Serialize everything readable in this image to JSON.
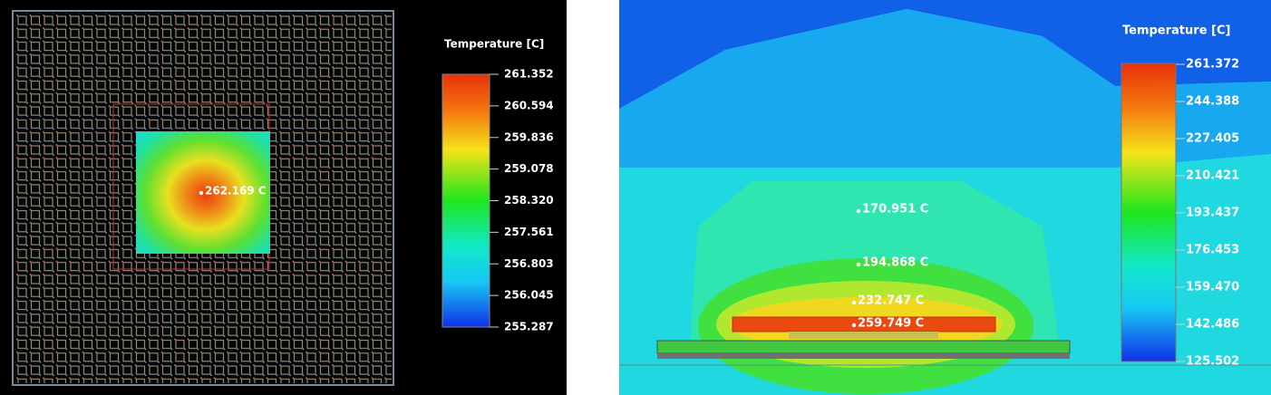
{
  "panels": [
    {
      "legend": {
        "title": "Temperature [C]",
        "ticks": [
          "261.352",
          "260.594",
          "259.836",
          "259.078",
          "258.320",
          "257.561",
          "256.803",
          "256.045",
          "255.287"
        ]
      },
      "probes": [
        "262.169 C"
      ]
    },
    {
      "legend": {
        "title": "Temperature [C]",
        "ticks": [
          "261.372",
          "244.388",
          "227.405",
          "210.421",
          "193.437",
          "176.453",
          "159.470",
          "142.486",
          "125.502"
        ]
      },
      "probes": [
        "170.951 C",
        "194.868 C",
        "232.747 C",
        "259.749 C"
      ]
    }
  ]
}
